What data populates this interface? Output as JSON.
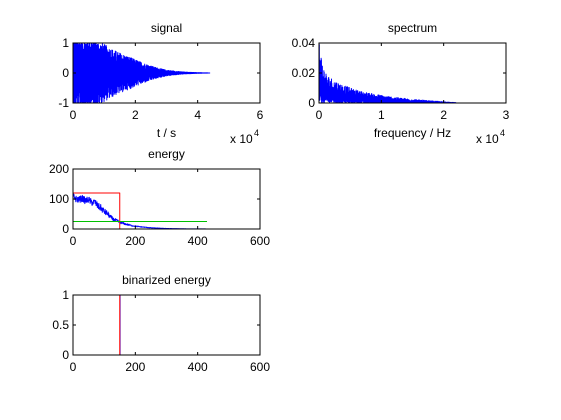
{
  "chart_data": [
    {
      "type": "line",
      "title": "signal",
      "xlabel": "t / s",
      "ylabel": "",
      "x_multiplier": "x 10",
      "x_multiplier_exp": "4",
      "xlim": [
        0,
        60000
      ],
      "ylim": [
        -1,
        1
      ],
      "xticks": [
        0,
        20000,
        40000,
        60000
      ],
      "xtick_labels": [
        "0",
        "2",
        "4",
        "6"
      ],
      "yticks": [
        -1,
        0,
        1
      ],
      "ytick_labels": [
        "-1",
        "0",
        "1"
      ],
      "grid": false,
      "series": [
        {
          "color": "#0000ff",
          "style": "dense_oscillation",
          "envelope": {
            "x": [
              0,
              1500,
              4000,
              7000,
              10000,
              14000,
              18000,
              22000,
              26000,
              30000,
              35000,
              40000,
              44000
            ],
            "amplitude": [
              1.0,
              1.0,
              1.0,
              0.95,
              0.8,
              0.6,
              0.45,
              0.3,
              0.17,
              0.08,
              0.03,
              0.01,
              0.0
            ]
          }
        }
      ]
    },
    {
      "type": "line",
      "title": "spectrum",
      "xlabel": "frequency / Hz",
      "ylabel": "",
      "x_multiplier": "x 10",
      "x_multiplier_exp": "4",
      "xlim": [
        0,
        30000
      ],
      "ylim": [
        0,
        0.04
      ],
      "xticks": [
        0,
        10000,
        20000,
        30000
      ],
      "xtick_labels": [
        "0",
        "1",
        "2",
        "3"
      ],
      "yticks": [
        0,
        0.02,
        0.04
      ],
      "ytick_labels": [
        "0",
        "0.02",
        "0.04"
      ],
      "grid": false,
      "series": [
        {
          "color": "#0000ff",
          "style": "dense_spectrum",
          "envelope": {
            "x": [
              0,
              100,
              200,
              400,
              700,
              1000,
              1500,
              2000,
              3000,
              4000,
              5000,
              6000,
              8000,
              10000,
              12000,
              15000,
              18000,
              20000,
              22000
            ],
            "value": [
              0.035,
              0.03,
              0.028,
              0.022,
              0.018,
              0.015,
              0.013,
              0.012,
              0.01,
              0.0085,
              0.0072,
              0.0062,
              0.0048,
              0.0037,
              0.0028,
              0.0018,
              0.001,
              0.0006,
              0.0002
            ]
          }
        }
      ]
    },
    {
      "type": "line",
      "title": "energy",
      "xlabel": "",
      "ylabel": "",
      "xlim": [
        0,
        600
      ],
      "ylim": [
        0,
        200
      ],
      "xticks": [
        0,
        200,
        400,
        600
      ],
      "xtick_labels": [
        "0",
        "200",
        "400",
        "600"
      ],
      "yticks": [
        0,
        100,
        200
      ],
      "ytick_labels": [
        "0",
        "100",
        "200"
      ],
      "grid": false,
      "series": [
        {
          "color": "#0000ff",
          "style": "noisy_line",
          "x": [
            0,
            10,
            20,
            30,
            40,
            50,
            60,
            70,
            80,
            90,
            100,
            110,
            120,
            130,
            140,
            150,
            170,
            190,
            210,
            230,
            250,
            270,
            290,
            310,
            340,
            370,
            400,
            430
          ],
          "y": [
            110,
            100,
            98,
            102,
            94,
            98,
            88,
            90,
            76,
            70,
            58,
            52,
            40,
            32,
            28,
            22,
            16,
            11,
            8,
            6,
            4,
            3,
            2,
            1.5,
            1,
            0.5,
            0.3,
            0.2
          ]
        },
        {
          "color": "#ff0000",
          "style": "rectangle",
          "x": [
            0,
            0,
            150,
            150
          ],
          "y": [
            0,
            120,
            120,
            0
          ]
        },
        {
          "color": "#00c000",
          "style": "line",
          "x": [
            0,
            430
          ],
          "y": [
            25,
            25
          ]
        }
      ]
    },
    {
      "type": "line",
      "title": "binarized energy",
      "xlabel": "",
      "ylabel": "",
      "xlim": [
        0,
        600
      ],
      "ylim": [
        0,
        1
      ],
      "xticks": [
        0,
        200,
        400,
        600
      ],
      "xtick_labels": [
        "0",
        "200",
        "400",
        "600"
      ],
      "yticks": [
        0,
        0.5,
        1
      ],
      "ytick_labels": [
        "0",
        "0.5",
        "1"
      ],
      "grid": false,
      "series": [
        {
          "color": "#0000ff",
          "style": "step",
          "x": [
            0,
            151,
            151,
            600
          ],
          "y": [
            0,
            0,
            1,
            1
          ]
        },
        {
          "color": "#ff0000",
          "style": "step",
          "x": [
            0,
            150,
            150,
            600
          ],
          "y": [
            0,
            0,
            1,
            1
          ]
        }
      ]
    }
  ]
}
